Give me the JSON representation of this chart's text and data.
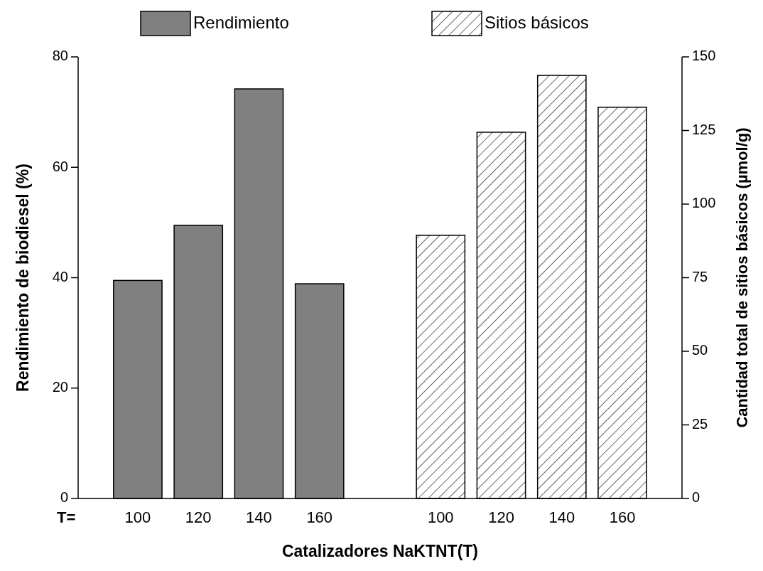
{
  "chart_data": {
    "type": "bar",
    "xlabel": "Catalizadores NaKTNT(T)",
    "ylabel": "Rendimiento  de biodiesel (%)",
    "y2label": "Cantidad total de sitios básicos (µmol/g)",
    "categories": [
      "100",
      "120",
      "140",
      "160",
      null,
      "100",
      "120",
      "140",
      "160"
    ],
    "series": [
      {
        "name": "Rendimiento",
        "color": "#808080",
        "values": [
          39.5,
          49.5,
          74.2,
          38.9,
          null,
          null,
          null,
          null,
          null
        ]
      },
      {
        "name": "Sitios básicos",
        "color": "#000000",
        "axis": "y2",
        "values": [
          null,
          null,
          null,
          null,
          null,
          89.4,
          124.4,
          143.7,
          132.9
        ]
      }
    ],
    "ylim": [
      0,
      80
    ],
    "yticks": [
      0,
      20,
      40,
      60,
      80
    ],
    "y2lim": [
      0,
      150
    ],
    "y2ticks": [
      0,
      25,
      50,
      75,
      100,
      125,
      150
    ],
    "annotations": [
      "T="
    ],
    "legend": "top",
    "grid": false
  }
}
